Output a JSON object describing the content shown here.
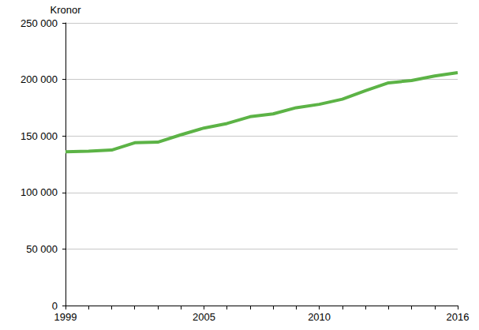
{
  "chart_data": {
    "type": "line",
    "ylabel": "Kronor",
    "categories": [
      "1999",
      null,
      null,
      null,
      null,
      null,
      "2005",
      null,
      null,
      null,
      null,
      "2010",
      null,
      null,
      null,
      null,
      null,
      "2016"
    ],
    "values": [
      136000,
      136500,
      137500,
      144000,
      144500,
      151000,
      157000,
      161000,
      167000,
      169500,
      175000,
      178000,
      182500,
      190000,
      197000,
      199000,
      203000,
      206000
    ],
    "color": "#5cb346",
    "ylim": [
      0,
      250000
    ],
    "yticks": [
      0,
      {
        "value": 50000,
        "label": "50 000"
      },
      {
        "value": 100000,
        "label": "100 000"
      },
      {
        "value": 150000,
        "label": "150 000"
      },
      {
        "value": 200000,
        "label": "200 000"
      },
      {
        "value": 250000,
        "label": "250 000"
      }
    ],
    "grid": true
  }
}
